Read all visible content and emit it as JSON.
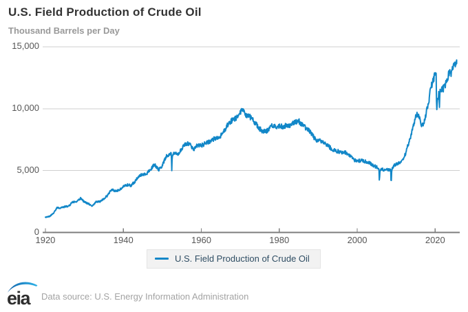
{
  "header": {
    "title": "U.S. Field Production of Crude Oil",
    "subtitle": "Thousand Barrels per Day"
  },
  "chart_data": {
    "type": "line",
    "title": "U.S. Field Production of Crude Oil",
    "ylabel": "Thousand Barrels per Day",
    "xlabel": "",
    "xlim": [
      1919.3,
      2026.3
    ],
    "ylim": [
      0,
      15000
    ],
    "grid": "horizontal-only",
    "legend_position": "bottom-center",
    "colors": {
      "line": "#1287c8",
      "gridline": "#cfcfcf",
      "axis": "#7d7d7d",
      "tick_text": "#565656"
    },
    "xticks": [
      {
        "v": 1920,
        "label": "1920"
      },
      {
        "v": 1940,
        "label": "1940"
      },
      {
        "v": 1960,
        "label": "1960"
      },
      {
        "v": 1980,
        "label": "1980"
      },
      {
        "v": 2000,
        "label": "2000"
      },
      {
        "v": 2020,
        "label": "2020"
      }
    ],
    "yticks": [
      {
        "v": 0,
        "label": "0"
      },
      {
        "v": 5000,
        "label": "5,000"
      },
      {
        "v": 10000,
        "label": "10,000"
      },
      {
        "v": 15000,
        "label": "15,000"
      }
    ],
    "series": [
      {
        "name": "U.S. Field Production of Crude Oil",
        "unit": "thousand barrels per day",
        "color": "#1287c8",
        "points": [
          [
            1920,
            1210
          ],
          [
            1921,
            1290
          ],
          [
            1922,
            1530
          ],
          [
            1923,
            2010
          ],
          [
            1924,
            1980
          ],
          [
            1925,
            2090
          ],
          [
            1926,
            2120
          ],
          [
            1927,
            2470
          ],
          [
            1928,
            2460
          ],
          [
            1929,
            2760
          ],
          [
            1930,
            2460
          ],
          [
            1931,
            2330
          ],
          [
            1932,
            2150
          ],
          [
            1933,
            2480
          ],
          [
            1934,
            2490
          ],
          [
            1935,
            2730
          ],
          [
            1936,
            3000
          ],
          [
            1937,
            3500
          ],
          [
            1938,
            3330
          ],
          [
            1939,
            3460
          ],
          [
            1940,
            3700
          ],
          [
            1941,
            3840
          ],
          [
            1942,
            3800
          ],
          [
            1943,
            4130
          ],
          [
            1944,
            4580
          ],
          [
            1945,
            4700
          ],
          [
            1946,
            4750
          ],
          [
            1947,
            5090
          ],
          [
            1948,
            5520
          ],
          [
            1949,
            5050
          ],
          [
            1950,
            5410
          ],
          [
            1951,
            6160
          ],
          [
            1952,
            6260
          ],
          [
            1952.3,
            6350
          ],
          [
            1952.42,
            5050
          ],
          [
            1952.55,
            6300
          ],
          [
            1953,
            6460
          ],
          [
            1954,
            6340
          ],
          [
            1955,
            6810
          ],
          [
            1956,
            7150
          ],
          [
            1957,
            7170
          ],
          [
            1958,
            6710
          ],
          [
            1959,
            7050
          ],
          [
            1960,
            7040
          ],
          [
            1961,
            7180
          ],
          [
            1962,
            7330
          ],
          [
            1963,
            7540
          ],
          [
            1964,
            7610
          ],
          [
            1965,
            7800
          ],
          [
            1966,
            8300
          ],
          [
            1967,
            8810
          ],
          [
            1968,
            9100
          ],
          [
            1969,
            9240
          ],
          [
            1970,
            9700
          ],
          [
            1970.85,
            10040
          ],
          [
            1971.3,
            9500
          ],
          [
            1972,
            9440
          ],
          [
            1973,
            9210
          ],
          [
            1974,
            8770
          ],
          [
            1975,
            8380
          ],
          [
            1976,
            8130
          ],
          [
            1977,
            8250
          ],
          [
            1978,
            8710
          ],
          [
            1979,
            8550
          ],
          [
            1980,
            8600
          ],
          [
            1981,
            8570
          ],
          [
            1982,
            8650
          ],
          [
            1983,
            8690
          ],
          [
            1984,
            8880
          ],
          [
            1985,
            9000
          ],
          [
            1986,
            8680
          ],
          [
            1987,
            8350
          ],
          [
            1988,
            8140
          ],
          [
            1989,
            7610
          ],
          [
            1990,
            7360
          ],
          [
            1991,
            7420
          ],
          [
            1992,
            7170
          ],
          [
            1993,
            6850
          ],
          [
            1994,
            6660
          ],
          [
            1995,
            6560
          ],
          [
            1996,
            6470
          ],
          [
            1997,
            6450
          ],
          [
            1998,
            6250
          ],
          [
            1999,
            5880
          ],
          [
            2000,
            5820
          ],
          [
            2001,
            5800
          ],
          [
            2002,
            5750
          ],
          [
            2003,
            5680
          ],
          [
            2004,
            5420
          ],
          [
            2005.3,
            5250
          ],
          [
            2005.58,
            5100
          ],
          [
            2005.67,
            4200
          ],
          [
            2005.83,
            4850
          ],
          [
            2006,
            5100
          ],
          [
            2007,
            5060
          ],
          [
            2008.4,
            5100
          ],
          [
            2008.58,
            4950
          ],
          [
            2008.7,
            3970
          ],
          [
            2008.85,
            4900
          ],
          [
            2009,
            5200
          ],
          [
            2009.5,
            5400
          ],
          [
            2010,
            5480
          ],
          [
            2011,
            5650
          ],
          [
            2012,
            6100
          ],
          [
            2012.5,
            6400
          ],
          [
            2012.9,
            7000
          ],
          [
            2013.5,
            7500
          ],
          [
            2013.9,
            8000
          ],
          [
            2014.5,
            8700
          ],
          [
            2014.9,
            9300
          ],
          [
            2015.25,
            9600
          ],
          [
            2015.6,
            9400
          ],
          [
            2015.9,
            9300
          ],
          [
            2016.2,
            9100
          ],
          [
            2016.6,
            8550
          ],
          [
            2016.9,
            8800
          ],
          [
            2017.3,
            9100
          ],
          [
            2017.9,
            9900
          ],
          [
            2018.3,
            10500
          ],
          [
            2018.6,
            11100
          ],
          [
            2018.9,
            11900
          ],
          [
            2019.1,
            11900
          ],
          [
            2019.4,
            12150
          ],
          [
            2019.65,
            12450
          ],
          [
            2019.9,
            12900
          ],
          [
            2020.1,
            13050
          ],
          [
            2020.25,
            12700
          ],
          [
            2020.37,
            10000
          ],
          [
            2020.5,
            10450
          ],
          [
            2020.6,
            10930
          ],
          [
            2020.7,
            10580
          ],
          [
            2020.78,
            10920
          ],
          [
            2020.85,
            10460
          ],
          [
            2020.92,
            11170
          ],
          [
            2021,
            11060
          ],
          [
            2021.12,
            9735
          ],
          [
            2021.2,
            11320
          ],
          [
            2021.5,
            11350
          ],
          [
            2021.8,
            11550
          ],
          [
            2022,
            11600
          ],
          [
            2022.3,
            11700
          ],
          [
            2022.6,
            11950
          ],
          [
            2022.85,
            12350
          ],
          [
            2023,
            12450
          ],
          [
            2023.3,
            12600
          ],
          [
            2023.6,
            12850
          ],
          [
            2023.8,
            13150
          ],
          [
            2023.95,
            13300
          ],
          [
            2024.05,
            12600
          ],
          [
            2024.2,
            13100
          ],
          [
            2024.5,
            13250
          ],
          [
            2024.75,
            13400
          ],
          [
            2024.95,
            13500
          ],
          [
            2025.1,
            13400
          ],
          [
            2025.3,
            13550
          ],
          [
            2025.5,
            13650
          ]
        ]
      }
    ],
    "render": {
      "samples_per_year": 12,
      "noise_pct": 2.2
    }
  },
  "legend": {
    "items": [
      {
        "label": "U.S. Field Production of Crude Oil",
        "color": "#1287c8"
      }
    ]
  },
  "footer": {
    "logo_text": "eia",
    "source": "Data source: U.S. Energy Information Administration"
  }
}
